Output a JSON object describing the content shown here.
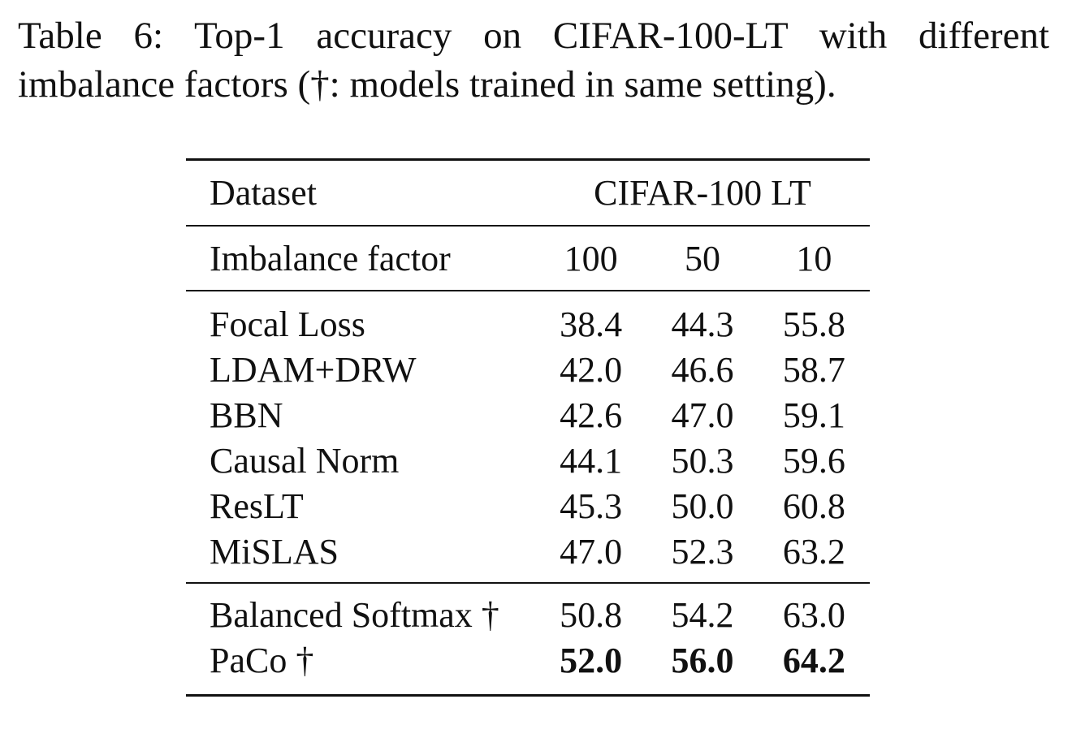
{
  "caption": {
    "line1": "Table 6:  Top-1 accuracy on CIFAR-100-LT with different",
    "line2": "imbalance factors (†: models trained in same setting)."
  },
  "table": {
    "header": {
      "dataset_label": "Dataset",
      "dataset_value": "CIFAR-100 LT",
      "factor_label": "Imbalance factor",
      "factors": [
        "100",
        "50",
        "10"
      ]
    },
    "group1": [
      {
        "method": "Focal Loss",
        "values": [
          "38.4",
          "44.3",
          "55.8"
        ]
      },
      {
        "method": "LDAM+DRW",
        "values": [
          "42.0",
          "46.6",
          "58.7"
        ]
      },
      {
        "method": "BBN",
        "values": [
          "42.6",
          "47.0",
          "59.1"
        ]
      },
      {
        "method": "Causal Norm",
        "values": [
          "44.1",
          "50.3",
          "59.6"
        ]
      },
      {
        "method": "ResLT",
        "values": [
          "45.3",
          "50.0",
          "60.8"
        ]
      },
      {
        "method": "MiSLAS",
        "values": [
          "47.0",
          "52.3",
          "63.2"
        ]
      }
    ],
    "group2": [
      {
        "method": "Balanced Softmax †",
        "values": [
          "50.8",
          "54.2",
          "63.0"
        ],
        "bold": false
      },
      {
        "method": "PaCo †",
        "values": [
          "52.0",
          "56.0",
          "64.2"
        ],
        "bold": true
      }
    ]
  }
}
